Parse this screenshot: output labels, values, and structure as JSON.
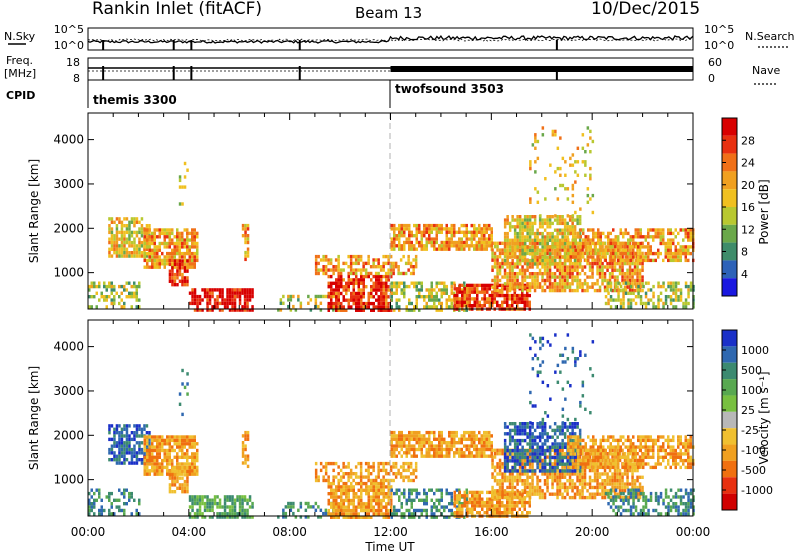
{
  "header": {
    "station": "Rankin Inlet (fitACF)",
    "beam": "Beam 13",
    "date": "10/Dec/2015"
  },
  "sky_panel": {
    "left_label": "N.Sky",
    "right_label": "N.Search",
    "left_ticks": [
      "10^5",
      "10^0"
    ],
    "right_ticks": [
      "10^5",
      "10^0"
    ]
  },
  "freq_panel": {
    "left_label_1": "Freq.",
    "left_label_2": "[MHz]",
    "right_label": "Nave",
    "left_ticks": [
      "18",
      "8"
    ],
    "right_ticks": [
      "60",
      "0"
    ]
  },
  "cpid": {
    "label": "CPID",
    "modes": [
      {
        "name": "themis 3300",
        "start_hour": 0
      },
      {
        "name": "twofsound 3503",
        "start_hour": 12
      }
    ]
  },
  "chart_data": [
    {
      "type": "heatmap",
      "name": "Power",
      "xlabel": "",
      "ylabel": "Slant Range [km]",
      "xlim_hours": [
        0,
        24
      ],
      "ylim": [
        180,
        4600
      ],
      "yticks": [
        "1000",
        "2000",
        "3000",
        "4000"
      ],
      "colorbar": {
        "label": "Power [dB]",
        "ticks": [
          "4",
          "8",
          "12",
          "16",
          "20",
          "24",
          "28"
        ],
        "colors": [
          "#1a18e0",
          "#2d62b8",
          "#3e8c6a",
          "#6aa84a",
          "#b8c830",
          "#f0c020",
          "#f0a020",
          "#f07018",
          "#e83010",
          "#d80000"
        ]
      }
    },
    {
      "type": "heatmap",
      "name": "Velocity",
      "xlabel": "Time UT",
      "ylabel": "Slant Range [km]",
      "xlim_hours": [
        0,
        24
      ],
      "ylim": [
        180,
        4600
      ],
      "yticks": [
        "1000",
        "2000",
        "3000",
        "4000"
      ],
      "xticks": [
        "00:00",
        "04:00",
        "08:00",
        "12:00",
        "16:00",
        "20:00",
        "00:00"
      ],
      "colorbar": {
        "label": "Velocity [m s⁻¹]",
        "ticks": [
          "1000",
          "500",
          "100",
          "25",
          "-25",
          "-100",
          "-500",
          "-1000"
        ],
        "colors": [
          "#1a30c8",
          "#2f68b0",
          "#3c8a70",
          "#58a850",
          "#78c040",
          "#b8b8b8",
          "#f0c030",
          "#f0a020",
          "#f07010",
          "#e83010",
          "#d00000"
        ]
      }
    }
  ]
}
